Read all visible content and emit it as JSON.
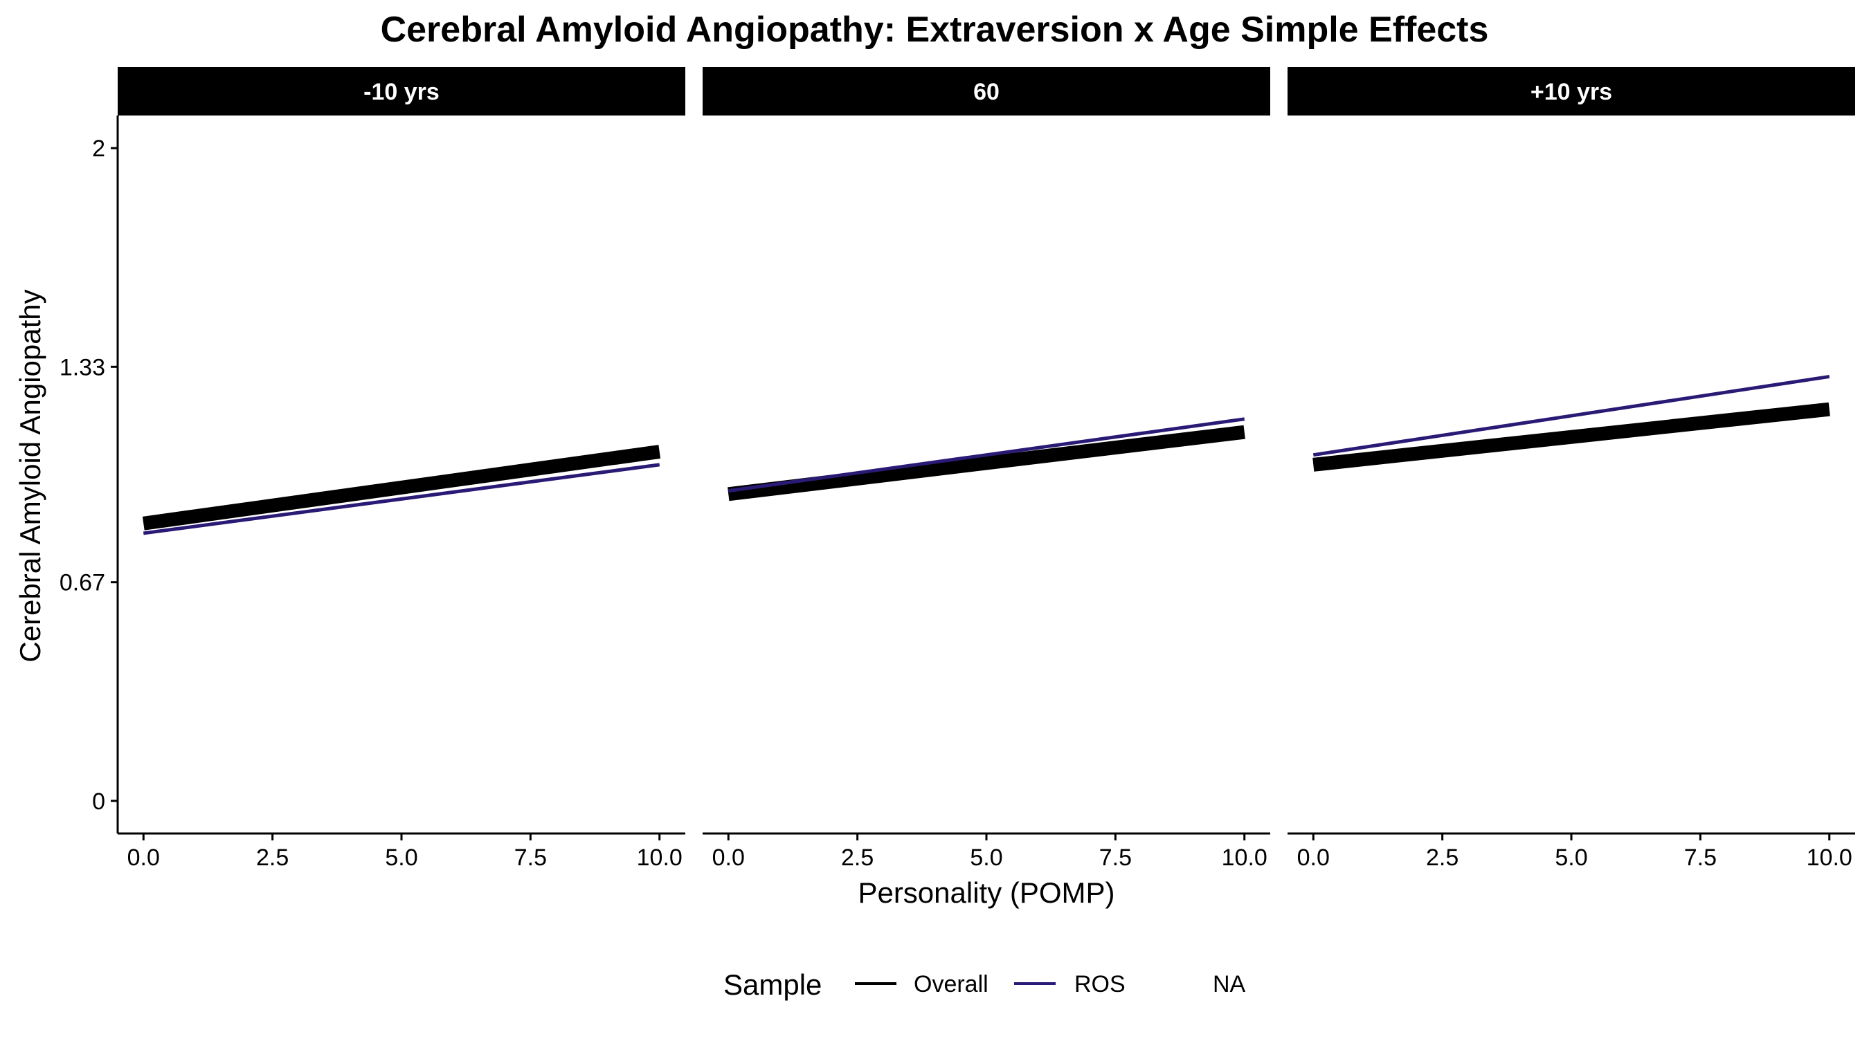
{
  "chart_data": {
    "type": "line",
    "title": "Cerebral Amyloid Angiopathy: Extraversion x Age Simple Effects",
    "xlabel": "Personality (POMP)",
    "ylabel": "Cerebral Amyloid Angiopathy",
    "xlim": [
      -0.5,
      10.5
    ],
    "ylim": [
      -0.1,
      2.1
    ],
    "x_ticks": [
      0,
      2.5,
      5,
      7.5,
      10
    ],
    "x_tick_labels": [
      "0.0",
      "2.5",
      "5.0",
      "7.5",
      "10.0"
    ],
    "y_ticks": [
      0,
      0.67,
      1.33,
      2
    ],
    "y_tick_labels": [
      "0",
      "0.67",
      "1.33",
      "2"
    ],
    "grid": false,
    "legend": {
      "title": "Sample",
      "position": "bottom",
      "entries": [
        {
          "label": "Overall",
          "color": "#000000"
        },
        {
          "label": "ROS",
          "color": "#2b1a75"
        },
        {
          "label": "NA",
          "color": null
        }
      ]
    },
    "panels": [
      {
        "label": "-10 yrs",
        "series": [
          {
            "name": "Overall",
            "x": [
              0,
              10
            ],
            "y": [
              0.85,
              1.07
            ]
          },
          {
            "name": "ROS",
            "x": [
              0,
              10
            ],
            "y": [
              0.82,
              1.03
            ]
          }
        ]
      },
      {
        "label": "60",
        "series": [
          {
            "name": "Overall",
            "x": [
              0,
              10
            ],
            "y": [
              0.94,
              1.13
            ]
          },
          {
            "name": "ROS",
            "x": [
              0,
              10
            ],
            "y": [
              0.95,
              1.17
            ]
          }
        ]
      },
      {
        "label": "+10 yrs",
        "series": [
          {
            "name": "Overall",
            "x": [
              0,
              10
            ],
            "y": [
              1.03,
              1.2
            ]
          },
          {
            "name": "ROS",
            "x": [
              0,
              10
            ],
            "y": [
              1.06,
              1.3
            ]
          }
        ]
      }
    ]
  }
}
